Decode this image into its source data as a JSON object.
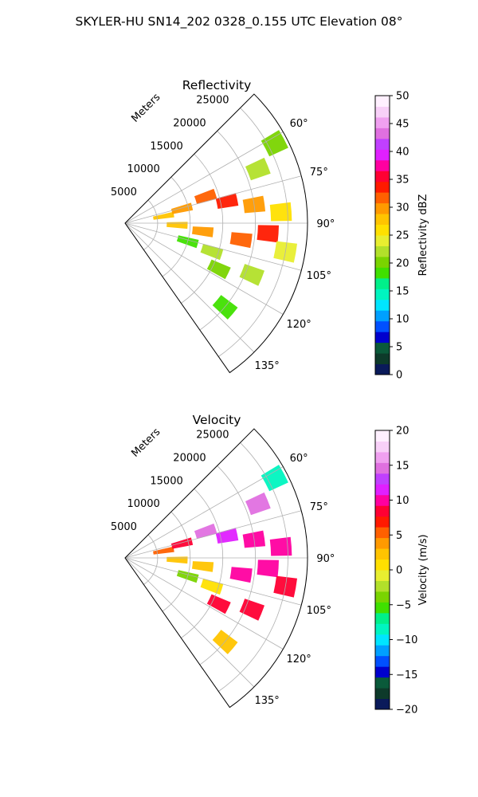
{
  "figure": {
    "suptitle": "SKYLER-HU  SN14_202  0328_0.155 UTC Elevation 08°"
  },
  "chart_data": [
    {
      "type": "heatmap",
      "projection": "polar-sector",
      "title": "Reflectivity",
      "radial_label": "Meters",
      "radial_ticks": [
        5000,
        10000,
        15000,
        20000,
        25000
      ],
      "radial_tick_labels": [
        "5000",
        "10000",
        "15000",
        "20000",
        "25000"
      ],
      "r_range": [
        0,
        28000
      ],
      "azimuth_range_deg": [
        45,
        145
      ],
      "azimuth_ticks_deg": [
        60,
        75,
        90,
        105,
        120,
        135
      ],
      "azimuth_tick_labels": [
        "60°",
        "75°",
        "90°",
        "105°",
        "120°",
        "135°"
      ],
      "grid": true,
      "colorbar": {
        "label": "Reflectivity dBZ",
        "range": [
          0,
          50
        ],
        "ticks": [
          0,
          5,
          10,
          15,
          20,
          25,
          30,
          35,
          40,
          45,
          50
        ],
        "tick_labels": [
          "0",
          "5",
          "10",
          "15",
          "20",
          "25",
          "30",
          "35",
          "40",
          "45",
          "50"
        ],
        "colors": [
          "#0a1a5a",
          "#0d3a2a",
          "#0a5a3a",
          "#0000cd",
          "#0050ff",
          "#00a0ff",
          "#00e5ff",
          "#00f5c0",
          "#00f08a",
          "#40e000",
          "#7ad400",
          "#b2e02a",
          "#e8ee30",
          "#ffe000",
          "#ffc400",
          "#ff9a00",
          "#ff6000",
          "#ff1a00",
          "#ff0033",
          "#ff00a0",
          "#e020ff",
          "#c040ff",
          "#e070e0",
          "#f0a0f0",
          "#f8d0f8",
          "#fff0ff"
        ]
      },
      "cells": [
        {
          "r": 6000,
          "az": 80,
          "v": 28
        },
        {
          "r": 9000,
          "az": 76,
          "v": 30
        },
        {
          "r": 13000,
          "az": 72,
          "v": 32
        },
        {
          "r": 16000,
          "az": 78,
          "v": 34
        },
        {
          "r": 20000,
          "az": 82,
          "v": 30
        },
        {
          "r": 24000,
          "az": 86,
          "v": 26
        },
        {
          "r": 8000,
          "az": 92,
          "v": 27
        },
        {
          "r": 12000,
          "az": 96,
          "v": 29
        },
        {
          "r": 18000,
          "az": 98,
          "v": 31
        },
        {
          "r": 22000,
          "az": 94,
          "v": 33
        },
        {
          "r": 25000,
          "az": 100,
          "v": 24
        },
        {
          "r": 10000,
          "az": 106,
          "v": 18
        },
        {
          "r": 14000,
          "az": 108,
          "v": 22
        },
        {
          "r": 16000,
          "az": 116,
          "v": 20
        },
        {
          "r": 21000,
          "az": 112,
          "v": 23
        },
        {
          "r": 20000,
          "az": 130,
          "v": 19
        },
        {
          "r": 26000,
          "az": 62,
          "v": 21
        },
        {
          "r": 22000,
          "az": 68,
          "v": 22
        }
      ]
    },
    {
      "type": "heatmap",
      "projection": "polar-sector",
      "title": "Velocity",
      "radial_label": "Meters",
      "radial_ticks": [
        5000,
        10000,
        15000,
        20000,
        25000
      ],
      "radial_tick_labels": [
        "5000",
        "10000",
        "15000",
        "20000",
        "25000"
      ],
      "r_range": [
        0,
        28000
      ],
      "azimuth_range_deg": [
        45,
        145
      ],
      "azimuth_ticks_deg": [
        60,
        75,
        90,
        105,
        120,
        135
      ],
      "azimuth_tick_labels": [
        "60°",
        "75°",
        "90°",
        "105°",
        "120°",
        "135°"
      ],
      "grid": true,
      "colorbar": {
        "label": "Velocity (m/s)",
        "range": [
          -20,
          20
        ],
        "ticks": [
          -20,
          -15,
          -10,
          -5,
          0,
          5,
          10,
          15,
          20
        ],
        "tick_labels": [
          "−20",
          "−15",
          "−10",
          "−5",
          "0",
          "5",
          "10",
          "15",
          "20"
        ],
        "colors": [
          "#0a1a5a",
          "#0d3a2a",
          "#0a5a3a",
          "#0000cd",
          "#0050ff",
          "#00a0ff",
          "#00e5ff",
          "#00f5c0",
          "#00f08a",
          "#40e000",
          "#7ad400",
          "#b2e02a",
          "#e8ee30",
          "#ffe000",
          "#ffc400",
          "#ff9a00",
          "#ff6000",
          "#ff1a00",
          "#ff0033",
          "#ff00a0",
          "#e020ff",
          "#c040ff",
          "#e070e0",
          "#f0a0f0",
          "#f8d0f8",
          "#fff0ff"
        ]
      },
      "cells": [
        {
          "r": 6000,
          "az": 80,
          "v": 6
        },
        {
          "r": 9000,
          "az": 76,
          "v": 9
        },
        {
          "r": 13000,
          "az": 72,
          "v": 14
        },
        {
          "r": 16000,
          "az": 78,
          "v": 12
        },
        {
          "r": 20000,
          "az": 82,
          "v": 10
        },
        {
          "r": 24000,
          "az": 86,
          "v": 10
        },
        {
          "r": 8000,
          "az": 92,
          "v": 2
        },
        {
          "r": 12000,
          "az": 96,
          "v": 3
        },
        {
          "r": 18000,
          "az": 98,
          "v": 10
        },
        {
          "r": 22000,
          "az": 94,
          "v": 10
        },
        {
          "r": 25000,
          "az": 100,
          "v": 9
        },
        {
          "r": 10000,
          "az": 106,
          "v": -4
        },
        {
          "r": 14000,
          "az": 108,
          "v": 1
        },
        {
          "r": 16000,
          "az": 116,
          "v": 9
        },
        {
          "r": 21000,
          "az": 112,
          "v": 9
        },
        {
          "r": 20000,
          "az": 130,
          "v": 2
        },
        {
          "r": 26000,
          "az": 62,
          "v": -9
        },
        {
          "r": 22000,
          "az": 68,
          "v": 14
        }
      ]
    }
  ]
}
